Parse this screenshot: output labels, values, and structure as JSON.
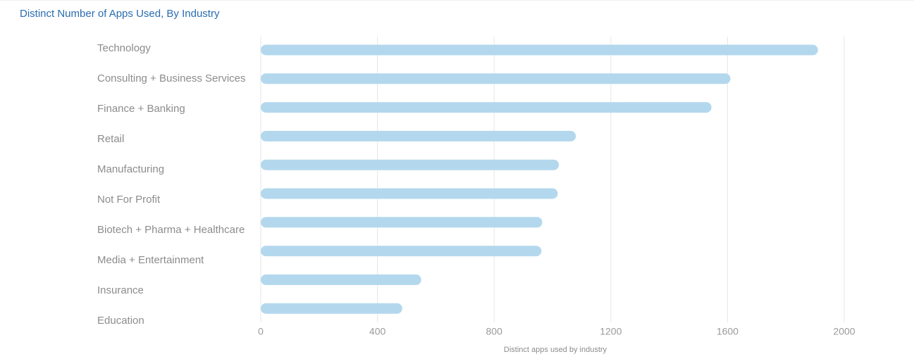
{
  "chart_data": {
    "type": "bar",
    "orientation": "horizontal",
    "title": "Distinct Number of Apps Used, By Industry",
    "xlabel": "Distinct apps used by industry",
    "ylabel": "",
    "categories": [
      "Technology",
      "Consulting + Business Services",
      "Finance + Banking",
      "Retail",
      "Manufacturing",
      "Not For Profit",
      "Biotech + Pharma + Healthcare",
      "Media + Entertainment",
      "Insurance",
      "Education"
    ],
    "values": [
      1910,
      1610,
      1545,
      1080,
      1022,
      1018,
      965,
      962,
      550,
      485
    ],
    "xlim": [
      0,
      2000
    ],
    "xticks": [
      "0",
      "400",
      "800",
      "1200",
      "1600",
      "2000"
    ],
    "grid": true,
    "legend": "none",
    "bar_color": "#b3d8ee"
  }
}
